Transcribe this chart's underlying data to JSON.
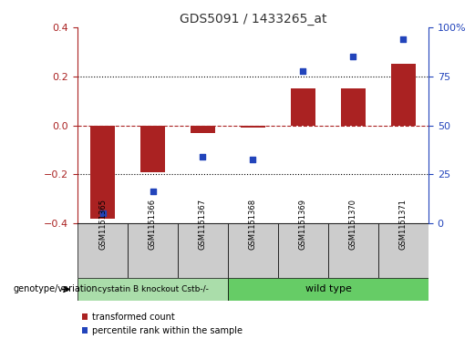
{
  "title": "GDS5091 / 1433265_at",
  "samples": [
    "GSM1151365",
    "GSM1151366",
    "GSM1151367",
    "GSM1151368",
    "GSM1151369",
    "GSM1151370",
    "GSM1151371"
  ],
  "bar_values": [
    -0.38,
    -0.19,
    -0.03,
    -0.01,
    0.15,
    0.15,
    0.25
  ],
  "scatter_values": [
    -0.36,
    -0.27,
    -0.13,
    -0.14,
    0.22,
    0.28,
    0.35
  ],
  "bar_color": "#aa2222",
  "scatter_color": "#2244bb",
  "ylim": [
    -0.4,
    0.4
  ],
  "y2lim": [
    0,
    100
  ],
  "yticks": [
    -0.4,
    -0.2,
    0.0,
    0.2,
    0.4
  ],
  "y2ticks": [
    0,
    25,
    50,
    75,
    100
  ],
  "y2ticklabels": [
    "0",
    "25",
    "50",
    "75",
    "100%"
  ],
  "hline_dotted": [
    -0.2,
    0.2
  ],
  "hline_zero": 0.0,
  "group1_label": "cystatin B knockout Cstb-/-",
  "group2_label": "wild type",
  "group1_count": 3,
  "group2_count": 4,
  "group1_color": "#aaddaa",
  "group2_color": "#66cc66",
  "legend_bar_label": "transformed count",
  "legend_scatter_label": "percentile rank within the sample",
  "genotype_label": "genotype/variation",
  "title_color": "#333333",
  "bar_width": 0.5
}
